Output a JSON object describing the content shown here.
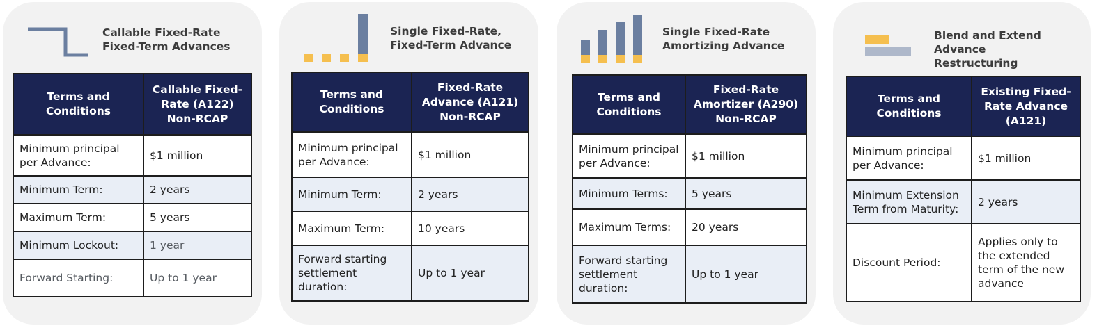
{
  "header_left": "Terms and Conditions",
  "colors": {
    "navy": "#1b2453",
    "accent": "#f5bf4f",
    "bar": "#6b7fa0",
    "shade": "#e9eef6"
  },
  "cards": [
    {
      "title": "Callable Fixed-Rate Fixed-Term Advances",
      "icon": "step-down-line-icon",
      "header_right": "Callable Fixed-Rate (A122) Non-RCAP",
      "rows": [
        {
          "label": "Minimum principal per Advance:",
          "value": "$1 million"
        },
        {
          "label": "Minimum Term:",
          "value": "2 years"
        },
        {
          "label": "Maximum Term:",
          "value": "5 years"
        },
        {
          "label": "Minimum Lockout:",
          "value": "1 year"
        },
        {
          "label": "Forward Starting:",
          "value": "Up to 1 year"
        }
      ]
    },
    {
      "title": "Single Fixed-Rate, Fixed-Term Advance",
      "icon": "bullet-payment-bars-icon",
      "header_right": "Fixed-Rate Advance (A121) Non-RCAP",
      "rows": [
        {
          "label": "Minimum principal per Advance:",
          "value": "$1 million"
        },
        {
          "label": "Minimum Term:",
          "value": "2 years"
        },
        {
          "label": "Maximum Term:",
          "value": "10 years"
        },
        {
          "label": "Forward starting settlement duration:",
          "value": "Up to 1 year"
        }
      ]
    },
    {
      "title": "Single Fixed-Rate Amortizing Advance",
      "icon": "amortizing-bars-icon",
      "header_right": "Fixed-Rate Amortizer (A290) Non-RCAP",
      "rows": [
        {
          "label": "Minimum principal per Advance:",
          "value": "$1 million"
        },
        {
          "label": "Minimum Terms:",
          "value": "5 years"
        },
        {
          "label": "Maximum Terms:",
          "value": "20 years"
        },
        {
          "label": "Forward starting settlement duration:",
          "value": "Up to 1 year"
        }
      ]
    },
    {
      "title": "Blend and Extend Advance Restructuring",
      "icon": "blend-extend-bars-icon",
      "header_right": "Existing Fixed-Rate Advance (A121)",
      "rows": [
        {
          "label": "Minimum principal per Advance:",
          "value": "$1 million"
        },
        {
          "label": "Minimum Extension Term from Maturity:",
          "value": "2 years"
        },
        {
          "label": "Discount Period:",
          "value": "Applies only to the extended term of the new advance"
        }
      ]
    }
  ]
}
